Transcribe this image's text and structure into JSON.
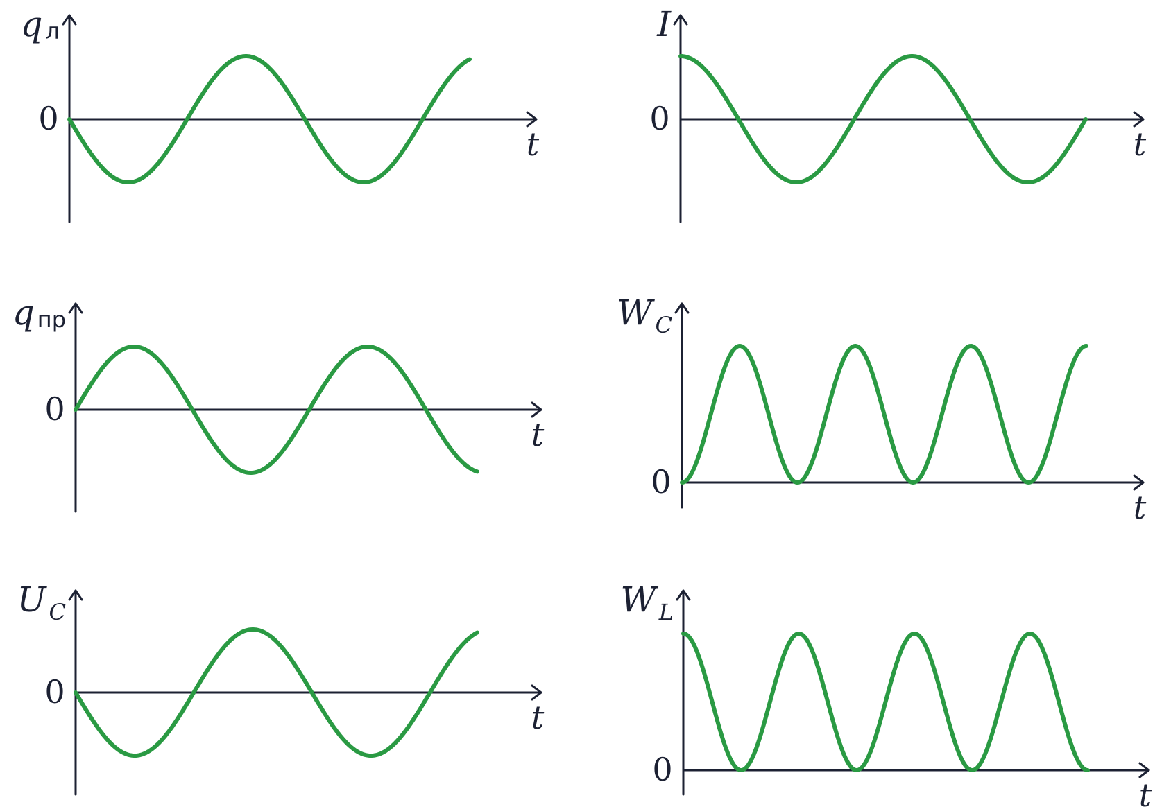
{
  "colors": {
    "curve": "#2a9a43",
    "axis": "#1c2133"
  },
  "chart_data": [
    {
      "id": "q_l",
      "type": "line",
      "ylabel_main": "q",
      "ylabel_sub": "л",
      "sub_style": "sans",
      "xlabel": "t",
      "zero_label": "0",
      "func": "sin",
      "amplitude": -1,
      "offset": 0,
      "periods": 1.7,
      "x": [
        0,
        0.25,
        0.5,
        0.75,
        1,
        1.25,
        1.5,
        1.7
      ],
      "y": [
        0,
        -1,
        0,
        1,
        0,
        -1,
        0,
        0.95
      ]
    },
    {
      "id": "I",
      "type": "line",
      "ylabel_main": "I",
      "ylabel_sub": "",
      "sub_style": "",
      "xlabel": "t",
      "zero_label": "0",
      "func": "cos",
      "amplitude": 1,
      "offset": 0,
      "periods": 1.75,
      "x": [
        0,
        0.25,
        0.5,
        0.75,
        1,
        1.25,
        1.5,
        1.75
      ],
      "y": [
        1,
        0,
        -1,
        0,
        1,
        0,
        -1,
        0
      ]
    },
    {
      "id": "q_pr",
      "type": "line",
      "ylabel_main": "q",
      "ylabel_sub": "пр",
      "sub_style": "sans",
      "xlabel": "t",
      "zero_label": "0",
      "func": "sin",
      "amplitude": 1,
      "offset": 0,
      "periods": 1.72,
      "x": [
        0,
        0.25,
        0.5,
        0.75,
        1,
        1.25,
        1.5,
        1.72
      ],
      "y": [
        0,
        1,
        0,
        -1,
        0,
        1,
        0,
        -0.95
      ]
    },
    {
      "id": "W_C",
      "type": "line",
      "ylabel_main": "W",
      "ylabel_sub": "C",
      "sub_style": "it",
      "xlabel": "t",
      "zero_label": "0",
      "func": "sin2",
      "amplitude": 1,
      "offset": 0,
      "periods": 1.75,
      "x": [
        0,
        0.25,
        0.5,
        0.75,
        1,
        1.25,
        1.5,
        1.75
      ],
      "y": [
        0,
        1,
        0,
        1,
        0,
        1,
        0,
        1
      ]
    },
    {
      "id": "U_C",
      "type": "line",
      "ylabel_main": "U",
      "ylabel_sub": "C",
      "sub_style": "it",
      "xlabel": "t",
      "zero_label": "0",
      "func": "sin",
      "amplitude": -1,
      "offset": 0,
      "periods": 1.7,
      "x": [
        0,
        0.25,
        0.5,
        0.75,
        1,
        1.25,
        1.5,
        1.7
      ],
      "y": [
        0,
        -1,
        0,
        1,
        0,
        -1,
        0,
        0.95
      ]
    },
    {
      "id": "W_L",
      "type": "line",
      "ylabel_main": "W",
      "ylabel_sub": "L",
      "sub_style": "it",
      "xlabel": "t",
      "zero_label": "0",
      "func": "cos2",
      "amplitude": 1,
      "offset": 0,
      "periods": 1.75,
      "x": [
        0,
        0.25,
        0.5,
        0.75,
        1,
        1.25,
        1.5,
        1.75
      ],
      "y": [
        1,
        0,
        1,
        0,
        1,
        0,
        1,
        0
      ]
    }
  ]
}
